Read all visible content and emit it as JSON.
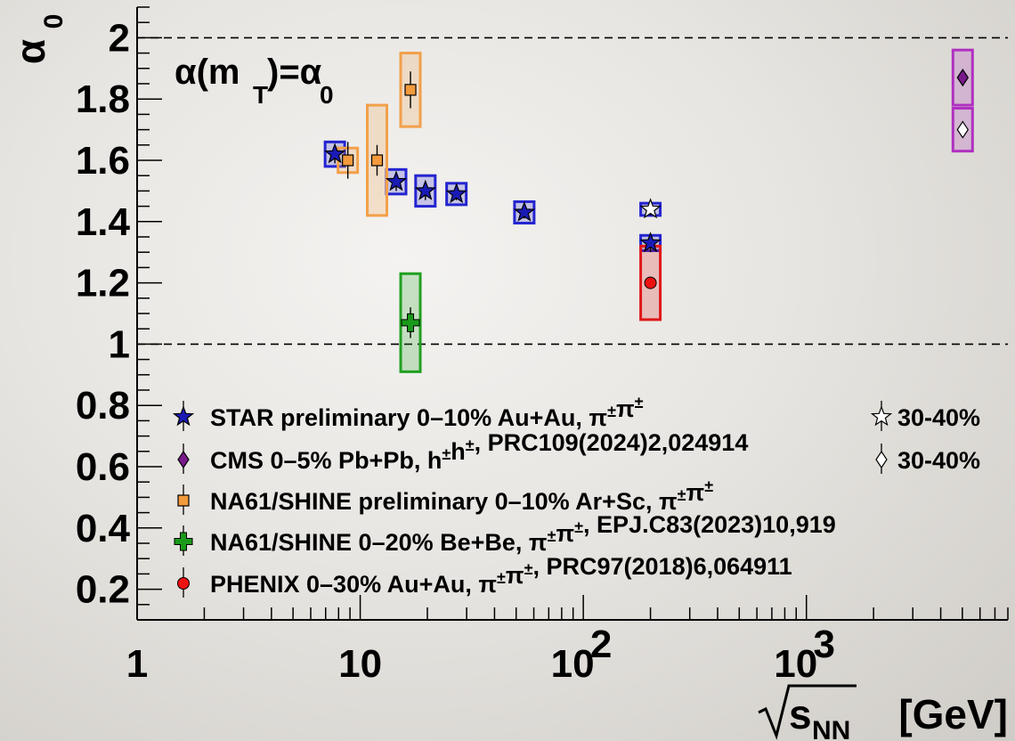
{
  "chart_data": {
    "type": "scatter",
    "xscale": "log",
    "xlim": [
      1,
      8000
    ],
    "ylim": [
      0.1,
      2.1
    ],
    "grid": false,
    "legend_position": "bottom-left",
    "reference_lines": [
      1.0,
      2.0
    ],
    "annotation": {
      "main": "α(m",
      "sub": "T",
      "tail": ")=α",
      "sub2": "0"
    },
    "ylabel": {
      "main": "α",
      "sub": "0"
    },
    "xlabel": {
      "root": "s",
      "sub": "NN",
      "unit": "[GeV]"
    },
    "x_tick_labels": [
      {
        "x": 1,
        "base": "1",
        "exp": ""
      },
      {
        "x": 10,
        "base": "10",
        "exp": ""
      },
      {
        "x": 100,
        "base": "10",
        "exp": "2"
      },
      {
        "x": 1000,
        "base": "10",
        "exp": "3"
      }
    ],
    "y_tick_labels": [
      "0.2",
      "0.4",
      "0.6",
      "0.8",
      "1",
      "1.2",
      "1.4",
      "1.6",
      "1.8",
      "2"
    ],
    "series": [
      {
        "name": "STAR preliminary 0–10% Au+Au, π±π±",
        "name_parts": {
          "base": "STAR preliminary 0–10% Au+Au, ",
          "pair": "ππ"
        },
        "color": "#1a1ab5",
        "box_color": "#2424d0",
        "marker": "star",
        "filled": true,
        "points": [
          {
            "x": 7.7,
            "y": 1.62,
            "err": 0.03,
            "sys": 0.04
          },
          {
            "x": 14.5,
            "y": 1.53,
            "err": 0.03,
            "sys": 0.04
          },
          {
            "x": 19.6,
            "y": 1.5,
            "err": 0.03,
            "sys": 0.05
          },
          {
            "x": 27,
            "y": 1.49,
            "err": 0.02,
            "sys": 0.035
          },
          {
            "x": 54.4,
            "y": 1.43,
            "err": 0.02,
            "sys": 0.035
          },
          {
            "x": 200,
            "y": 1.33,
            "err": 0.03,
            "sys": 0.025
          }
        ]
      },
      {
        "name": "CMS 0–5% Pb+Pb, h±h±, PRC109(2024)2,024914",
        "name_parts": {
          "base": "CMS 0–5% Pb+Pb, ",
          "pair": "hh",
          "tail": ", PRC109(2024)2,024914"
        },
        "color": "#7a1a8a",
        "box_color": "#b030c0",
        "marker": "diamond",
        "filled": true,
        "points": [
          {
            "x": 5020,
            "y": 1.87,
            "err": 0.02,
            "sys": 0.09
          }
        ]
      },
      {
        "name": "NA61/SHINE preliminary 0–10% Ar+Sc, π±π±",
        "name_parts": {
          "base": "NA61/SHINE preliminary 0–10% Ar+Sc, ",
          "pair": "ππ"
        },
        "color": "#f29a3c",
        "box_color": "#f2a04a",
        "marker": "square",
        "filled": true,
        "points": [
          {
            "x": 8.8,
            "y": 1.6,
            "err": 0.06,
            "sys": 0.04
          },
          {
            "x": 11.9,
            "y": 1.6,
            "err": 0.05,
            "sys": 0.18
          },
          {
            "x": 16.8,
            "y": 1.83,
            "err": 0.06,
            "sys": 0.12
          }
        ]
      },
      {
        "name": "NA61/SHINE 0–20% Be+Be, π±π±, EPJ.C83(2023)10,919",
        "name_parts": {
          "base": "NA61/SHINE 0–20% Be+Be, ",
          "pair": "ππ",
          "tail": ", EPJ.C83(2023)10,919"
        },
        "color": "#1a9a1a",
        "box_color": "#20a020",
        "marker": "cross",
        "filled": true,
        "points": [
          {
            "x": 16.8,
            "y": 1.07,
            "err": 0.05,
            "sys": 0.16
          }
        ]
      },
      {
        "name": "PHENIX 0–30% Au+Au, π±π±, PRC97(2018)6,064911",
        "name_parts": {
          "base": "PHENIX 0–30% Au+Au, ",
          "pair": "ππ",
          "tail": ", PRC97(2018)6,064911"
        },
        "color": "#ee1111",
        "box_color": "#e01818",
        "marker": "circle",
        "filled": true,
        "points": [
          {
            "x": 200,
            "y": 1.2,
            "err": 0.02,
            "sys": 0.12
          }
        ]
      }
    ],
    "open_markers": [
      {
        "name": "30-40%",
        "ref_series": 0,
        "marker": "star",
        "color": "#1a1ab5",
        "box_color": "#2424d0",
        "points": [
          {
            "x": 200,
            "y": 1.44,
            "err": 0.02,
            "sys": 0.02
          }
        ]
      },
      {
        "name": "30-40%",
        "ref_series": 1,
        "marker": "diamond",
        "color": "#7a1a8a",
        "box_color": "#b030c0",
        "points": [
          {
            "x": 5020,
            "y": 1.7,
            "err": 0.02,
            "sys": 0.07
          }
        ]
      }
    ]
  }
}
